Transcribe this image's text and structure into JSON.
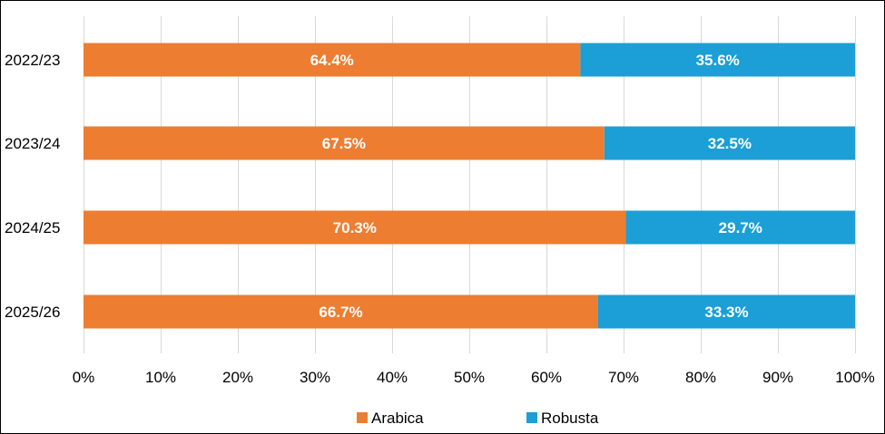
{
  "chart_data": {
    "type": "bar",
    "orientation": "horizontal",
    "stacked": "percent",
    "categories": [
      "2022/23",
      "2023/24",
      "2024/25",
      "2025/26"
    ],
    "series": [
      {
        "name": "Arabica",
        "color": "#ED7D31",
        "values": [
          64.4,
          67.5,
          70.3,
          66.7
        ],
        "labels": [
          "64.4%",
          "67.5%",
          "70.3%",
          "66.7%"
        ]
      },
      {
        "name": "Robusta",
        "color": "#1B9FD6",
        "values": [
          35.6,
          32.5,
          29.7,
          33.3
        ],
        "labels": [
          "35.6%",
          "32.5%",
          "29.7%",
          "33.3%"
        ]
      }
    ],
    "x_ticks": [
      "0%",
      "10%",
      "20%",
      "30%",
      "40%",
      "50%",
      "60%",
      "70%",
      "80%",
      "90%",
      "100%"
    ],
    "xlim": [
      0,
      100
    ],
    "grid": "vertical",
    "legend": "bottom-center"
  }
}
